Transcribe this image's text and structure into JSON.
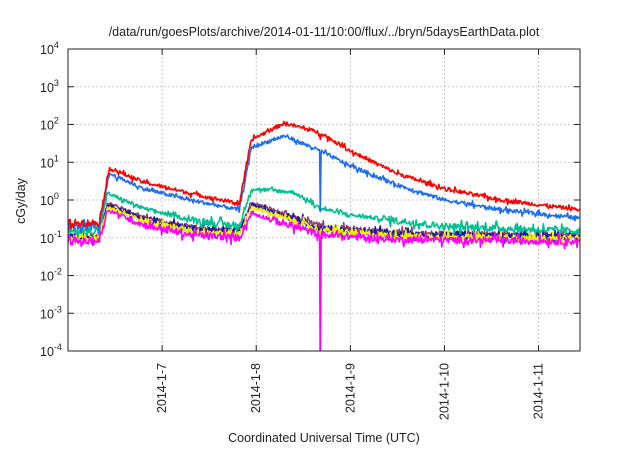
{
  "chart_data": {
    "type": "line",
    "title": "/data/run/goesPlots/archive/2014-01-11/10:00/flux/../bryn/5daysEarthData.plot",
    "xlabel": "Coordinated Universal Time (UTC)",
    "ylabel": "cGy/day",
    "yscale": "log",
    "ylim": [
      0.0001,
      10000
    ],
    "xlim_days_jan2014": [
      6.0,
      11.44
    ],
    "grid": true,
    "legend": "none",
    "y_ticks": [
      {
        "value": 0.0001,
        "base": "10",
        "exp": "-4"
      },
      {
        "value": 0.001,
        "base": "10",
        "exp": "-3"
      },
      {
        "value": 0.01,
        "base": "10",
        "exp": "-2"
      },
      {
        "value": 0.1,
        "base": "10",
        "exp": "-1"
      },
      {
        "value": 1,
        "base": "10",
        "exp": "0"
      },
      {
        "value": 10,
        "base": "10",
        "exp": "1"
      },
      {
        "value": 100,
        "base": "10",
        "exp": "2"
      },
      {
        "value": 1000,
        "base": "10",
        "exp": "3"
      },
      {
        "value": 10000,
        "base": "10",
        "exp": "4"
      }
    ],
    "x_ticks": [
      {
        "day": 7,
        "label": "2014-1-7"
      },
      {
        "day": 8,
        "label": "2014-1-8"
      },
      {
        "day": 9,
        "label": "2014-1-9"
      },
      {
        "day": 10,
        "label": "2014-1-10"
      },
      {
        "day": 11,
        "label": "2014-1-11"
      }
    ],
    "glitch_day": 8.68,
    "series": [
      {
        "name": "red",
        "color": "#ff0000",
        "glitch_to": 40,
        "points": [
          [
            6.0,
            0.25
          ],
          [
            6.33,
            0.25
          ],
          [
            6.44,
            7
          ],
          [
            6.8,
            3
          ],
          [
            7.3,
            1.5
          ],
          [
            7.82,
            0.8
          ],
          [
            7.95,
            40
          ],
          [
            8.3,
            110
          ],
          [
            8.68,
            60
          ],
          [
            9.0,
            20
          ],
          [
            9.5,
            5
          ],
          [
            10.0,
            2
          ],
          [
            10.6,
            1
          ],
          [
            11.44,
            0.55
          ]
        ]
      },
      {
        "name": "light-blue",
        "color": "#1e6ef0",
        "glitch_to": 0.5,
        "points": [
          [
            6.0,
            0.2
          ],
          [
            6.33,
            0.2
          ],
          [
            6.44,
            5
          ],
          [
            6.8,
            2
          ],
          [
            7.3,
            1
          ],
          [
            7.82,
            0.55
          ],
          [
            7.95,
            25
          ],
          [
            8.3,
            50
          ],
          [
            8.68,
            20
          ],
          [
            9.0,
            8
          ],
          [
            9.5,
            2.5
          ],
          [
            10.0,
            1
          ],
          [
            10.6,
            0.55
          ],
          [
            11.44,
            0.33
          ]
        ]
      },
      {
        "name": "teal",
        "color": "#00c090",
        "glitch_to": 0.5,
        "points": [
          [
            6.0,
            0.15
          ],
          [
            6.33,
            0.15
          ],
          [
            6.42,
            1.5
          ],
          [
            6.8,
            0.6
          ],
          [
            7.3,
            0.3
          ],
          [
            7.82,
            0.2
          ],
          [
            7.95,
            2.0
          ],
          [
            8.4,
            1.6
          ],
          [
            8.68,
            0.6
          ],
          [
            9.0,
            0.4
          ],
          [
            10.0,
            0.2
          ],
          [
            11.44,
            0.15
          ]
        ]
      },
      {
        "name": "dark-blue",
        "color": "#1a1aa0",
        "glitch_to": 0.1,
        "points": [
          [
            6.0,
            0.1
          ],
          [
            6.33,
            0.1
          ],
          [
            6.42,
            0.75
          ],
          [
            6.8,
            0.3
          ],
          [
            7.3,
            0.17
          ],
          [
            7.82,
            0.14
          ],
          [
            7.95,
            0.75
          ],
          [
            8.68,
            0.18
          ],
          [
            9.5,
            0.12
          ],
          [
            11.44,
            0.1
          ]
        ]
      },
      {
        "name": "yellow",
        "color": "#f0f000",
        "glitch_to": 0.1,
        "points": [
          [
            6.0,
            0.1
          ],
          [
            6.33,
            0.1
          ],
          [
            6.42,
            0.65
          ],
          [
            6.8,
            0.28
          ],
          [
            7.3,
            0.15
          ],
          [
            7.82,
            0.13
          ],
          [
            7.95,
            0.65
          ],
          [
            8.68,
            0.16
          ],
          [
            9.5,
            0.11
          ],
          [
            11.44,
            0.09
          ]
        ]
      },
      {
        "name": "purple",
        "color": "#8e3e78",
        "glitch_to": 0.1,
        "points": [
          [
            6.0,
            0.11
          ],
          [
            6.33,
            0.11
          ],
          [
            6.42,
            0.85
          ],
          [
            6.8,
            0.35
          ],
          [
            7.3,
            0.18
          ],
          [
            7.82,
            0.15
          ],
          [
            7.95,
            0.85
          ],
          [
            8.68,
            0.2
          ],
          [
            9.5,
            0.13
          ],
          [
            11.44,
            0.11
          ]
        ]
      },
      {
        "name": "magenta",
        "color": "#ff00ff",
        "glitch_to": 1e-05,
        "points": [
          [
            6.0,
            0.08
          ],
          [
            6.33,
            0.08
          ],
          [
            6.42,
            0.55
          ],
          [
            6.8,
            0.22
          ],
          [
            7.3,
            0.12
          ],
          [
            7.82,
            0.1
          ],
          [
            7.95,
            0.45
          ],
          [
            8.68,
            0.12
          ],
          [
            9.5,
            0.09
          ],
          [
            11.44,
            0.08
          ]
        ]
      }
    ]
  }
}
